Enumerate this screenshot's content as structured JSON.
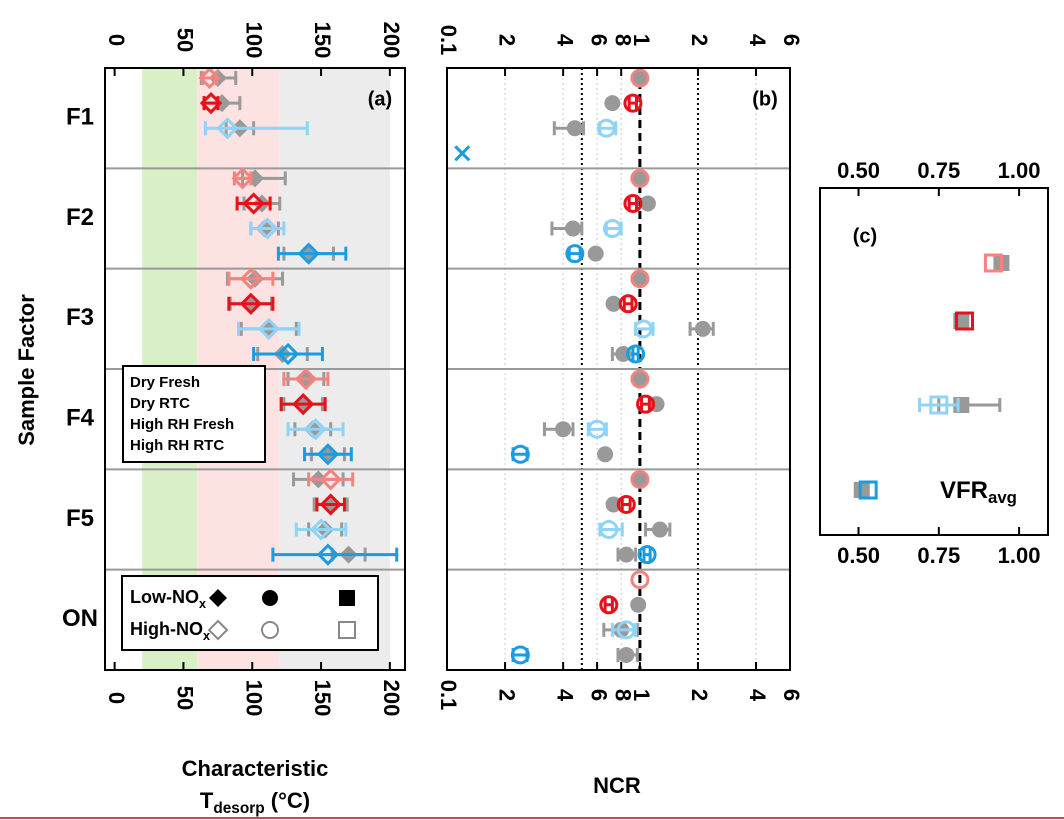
{
  "chart_data": [
    {
      "type": "errorbar",
      "label": "(a)",
      "ylabel": "Sample Factor",
      "xlabel": {
        "line1": "Characteristic",
        "line2": {
          "text": "T",
          "sub": "desorp",
          "tail": " (°C)"
        }
      },
      "categories": [
        "F1",
        "F2",
        "F3",
        "F4",
        "F5",
        "ON"
      ],
      "xlim": [
        -7,
        211
      ],
      "xticks": [
        0,
        50,
        100,
        150,
        200
      ],
      "xscale": "linear",
      "grid": false,
      "marker": "diamond",
      "low_color": "#999999",
      "bands": [
        {
          "range": [
            20,
            60
          ],
          "color": "#d9efc6"
        },
        {
          "range": [
            60,
            120
          ],
          "color": "#fde2e2"
        },
        {
          "range": [
            120,
            200
          ],
          "color": "#ececec"
        }
      ],
      "legend": "middle left",
      "regime_legend": [
        {
          "text": "Low-NO",
          "sub": "x"
        },
        {
          "text": "High-NO",
          "sub": "x"
        }
      ],
      "series": [
        {
          "name": "Dry Fresh",
          "color": "#f4837d",
          "high": {
            "values": [
              69,
              93,
              99,
              139,
              157,
              null
            ],
            "errors": [
              [
                5,
                5
              ],
              [
                6,
                6
              ],
              [
                16,
                16
              ],
              [
                16,
                16
              ],
              [
                16,
                16
              ],
              null
            ]
          },
          "low": {
            "values": [
              75,
              102,
              102,
              139,
              148,
              null
            ],
            "errors": [
              [
                12,
                13
              ],
              [
                9,
                22
              ],
              [
                20,
                20
              ],
              [
                13,
                13
              ],
              [
                18,
                18
              ],
              null
            ]
          }
        },
        {
          "name": "Dry RTC",
          "color": "#e8101a",
          "high": {
            "values": [
              70,
              101,
              99,
              137,
              157,
              null
            ],
            "errors": [
              [
                5,
                5
              ],
              [
                12,
                12
              ],
              [
                16,
                16
              ],
              [
                16,
                16
              ],
              [
                10,
                10
              ],
              null
            ]
          },
          "low": {
            "values": [
              78,
              107,
              99,
              137,
              157,
              null
            ],
            "errors": [
              [
                13,
                13
              ],
              [
                13,
                13
              ],
              [
                15,
                15
              ],
              [
                14,
                14
              ],
              [
                12,
                12
              ],
              null
            ]
          }
        },
        {
          "name": "High RH Fresh",
          "color": "#8fd3f7",
          "high": {
            "values": [
              82,
              111,
              112,
              146,
              150,
              null
            ],
            "errors": [
              [
                16,
                58
              ],
              [
                12,
                12
              ],
              [
                22,
                22
              ],
              [
                20,
                20
              ],
              [
                18,
                18
              ],
              null
            ]
          },
          "low": {
            "values": [
              91,
              109,
              112,
              144,
              153,
              null
            ],
            "errors": [
              [
                10,
                10
              ],
              [
                10,
                10
              ],
              [
                20,
                20
              ],
              [
                13,
                13
              ],
              [
                12,
                12
              ],
              null
            ]
          }
        },
        {
          "name": "High RH RTC",
          "color": "#1a9de0",
          "high": {
            "values": [
              null,
              141,
              126,
              155,
              155,
              null
            ],
            "errors": [
              null,
              [
                22,
                27
              ],
              [
                25,
                25
              ],
              [
                17,
                17
              ],
              [
                40,
                50
              ],
              null
            ]
          },
          "low": {
            "values": [
              null,
              141,
              122,
              155,
              170,
              null
            ],
            "errors": [
              null,
              [
                18,
                18
              ],
              [
                18,
                18
              ],
              [
                12,
                12
              ],
              [
                12,
                12
              ],
              null
            ]
          }
        }
      ]
    },
    {
      "type": "errorbar",
      "label": "(b)",
      "xlabel": {
        "line1": "NCR"
      },
      "xlim": [
        0.1,
        6
      ],
      "xscale": "log",
      "grid": true,
      "marker": "circle",
      "low_color": "#999999",
      "xticks": [
        {
          "value": 0.1,
          "label": "0.1"
        },
        {
          "value": 0.2,
          "label": "2"
        },
        {
          "value": 0.4,
          "label": "4"
        },
        {
          "value": 0.6,
          "label": "6"
        },
        {
          "value": 0.8,
          "label": "8"
        },
        1,
        {
          "value": 2,
          "label": "2"
        },
        {
          "value": 4,
          "label": "4"
        },
        {
          "value": 6,
          "label": "6"
        }
      ],
      "ref_lines": [
        {
          "value": 0.5,
          "style": "dotted"
        },
        {
          "value": 1,
          "style": "dashed"
        },
        {
          "value": 2,
          "style": "dotted"
        }
      ],
      "series": [
        {
          "name": "Dry Fresh",
          "color": "#f4837d",
          "high": {
            "values": [
              1,
              1,
              1,
              1,
              1,
              1
            ]
          },
          "low": {
            "values": [
              1,
              1,
              1,
              1,
              1,
              null
            ]
          }
        },
        {
          "name": "Dry RTC",
          "color": "#e8101a",
          "high": {
            "values": [
              0.92,
              0.92,
              0.87,
              1.07,
              0.85,
              0.69
            ],
            "errors": [
              [
                0.04,
                0.04
              ],
              [
                0.04,
                0.04
              ],
              [
                0.04,
                0.04
              ],
              [
                0.05,
                0.05
              ],
              [
                0.04,
                0.04
              ],
              [
                0.03,
                0.03
              ]
            ]
          },
          "low": {
            "values": [
              0.72,
              1.1,
              0.73,
              1.22,
              0.73,
              0.98
            ]
          }
        },
        {
          "name": "High RH Fresh",
          "color": "#8fd3f7",
          "high": {
            "values": [
              0.67,
              0.72,
              1.04,
              0.6,
              0.69,
              0.85
            ],
            "errors": [
              [
                0.05,
                0.08
              ],
              [
                0.05,
                0.08
              ],
              [
                0.09,
                0.13
              ],
              [
                0.06,
                0.07
              ],
              [
                0.07,
                0.12
              ],
              [
                0.13,
                0.1
              ]
            ]
          },
          "low": {
            "values": [
              0.46,
              0.45,
              2.12,
              0.4,
              1.27,
              0.8
            ],
            "errors": [
              [
                0.1,
                0.05
              ],
              [
                0.1,
                0.05
              ],
              [
                0.3,
                0.28
              ],
              [
                0.08,
                0.05
              ],
              [
                0.2,
                0.16
              ],
              [
                0.15,
                0.17
              ]
            ]
          }
        },
        {
          "name": "High RH RTC",
          "color": "#1a9de0",
          "high": {
            "values": [
              0.12,
              0.46,
              0.95,
              0.24,
              1.09,
              0.24
            ],
            "symbols": [
              "x",
              "o",
              "o",
              "o",
              "o",
              "o"
            ],
            "errors": [
              null,
              [
                0.03,
                0.03
              ],
              [
                0.03,
                0.03
              ],
              [
                0.02,
                0.02
              ],
              [
                0.04,
                0.04
              ],
              [
                0.02,
                0.02
              ]
            ]
          },
          "low": {
            "values": [
              null,
              0.59,
              0.82,
              0.66,
              0.85,
              0.85
            ],
            "errors": [
              null,
              null,
              [
                0.1,
                0.1
              ],
              null,
              [
                0.08,
                0.1
              ],
              [
                0.08,
                0.12
              ]
            ]
          }
        }
      ]
    },
    {
      "type": "errorbar",
      "label": "(c)",
      "xlabel": {
        "text": "VFR",
        "sub": "avg"
      },
      "xlim": [
        0.38,
        1.09
      ],
      "xscale": "linear",
      "grid": false,
      "marker": "square",
      "low_color": "#999999",
      "xticks": [
        {
          "value": 0.5,
          "label": "0.50"
        },
        {
          "value": 0.75,
          "label": "0.75"
        },
        {
          "value": 1,
          "label": "1.00"
        }
      ],
      "series": [
        {
          "name": "Dry Fresh",
          "color": "#f4837d",
          "high": {
            "values": [
              0.92
            ]
          },
          "low": {
            "values": [
              0.945
            ]
          }
        },
        {
          "name": "Dry RTC",
          "color": "#e8101a",
          "high": {
            "values": [
              0.83
            ]
          },
          "low": {
            "values": [
              0.82
            ]
          }
        },
        {
          "name": "High RH Fresh",
          "color": "#8fd3f7",
          "high": {
            "values": [
              0.75
            ],
            "errors": [
              [
                0.06,
                0.06
              ]
            ]
          },
          "low": {
            "values": [
              0.82
            ],
            "errors": [
              [
                0.07,
                0.12
              ]
            ]
          }
        },
        {
          "name": "High RH RTC",
          "color": "#1a9de0",
          "high": {
            "values": [
              0.53
            ]
          },
          "low": {
            "values": [
              0.51
            ]
          }
        }
      ]
    }
  ]
}
